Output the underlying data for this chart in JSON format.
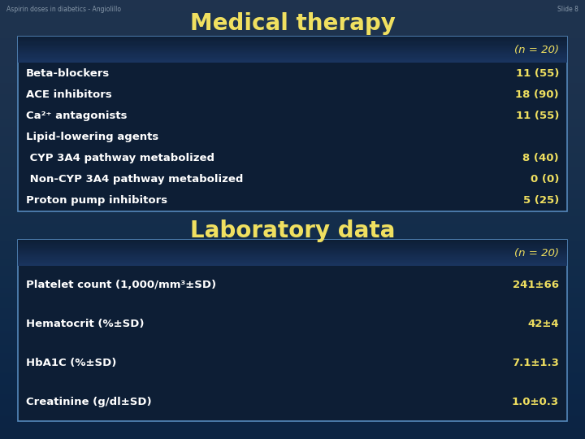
{
  "background_color": "#0d2340",
  "bg_gradient_top": "#0a1e38",
  "bg_gradient_bottom": "#1a3a5a",
  "header_text_color": "#f0e060",
  "body_text_color": "#ffffff",
  "value_text_color": "#f0e060",
  "table_bg": "#0d1e35",
  "table_header_bg": "#1a3560",
  "table_border_color": "#5588bb",
  "slide_label": "Aspirin doses in diabetics - Angiolillo",
  "slide_number": "Slide 8",
  "main_title": "Medical therapy",
  "section2_title": "Laboratory data",
  "n_label": "(n = 20)",
  "med_therapy_rows": [
    {
      "label": "Beta-blockers",
      "value": "11 (55)"
    },
    {
      "label": "ACE inhibitors",
      "value": "18 (90)"
    },
    {
      "label": "Ca²⁺ antagonists",
      "value": "11 (55)"
    },
    {
      "label": "Lipid-lowering agents",
      "value": ""
    },
    {
      "label": " CYP 3A4 pathway metabolized",
      "value": "8 (40)"
    },
    {
      "label": " Non-CYP 3A4 pathway metabolized",
      "value": "0 (0)"
    },
    {
      "label": "Proton pump inhibitors",
      "value": "5 (25)"
    }
  ],
  "lab_data_rows": [
    {
      "label": "Platelet count (1,000/mm³±SD)",
      "value": "241±66"
    },
    {
      "label": "Hematocrit (%±SD)",
      "value": "42±4"
    },
    {
      "label": "HbA1C (%±SD)",
      "value": "7.1±1.3"
    },
    {
      "label": "Creatinine (g/dl±SD)",
      "value": "1.0±0.3"
    }
  ]
}
